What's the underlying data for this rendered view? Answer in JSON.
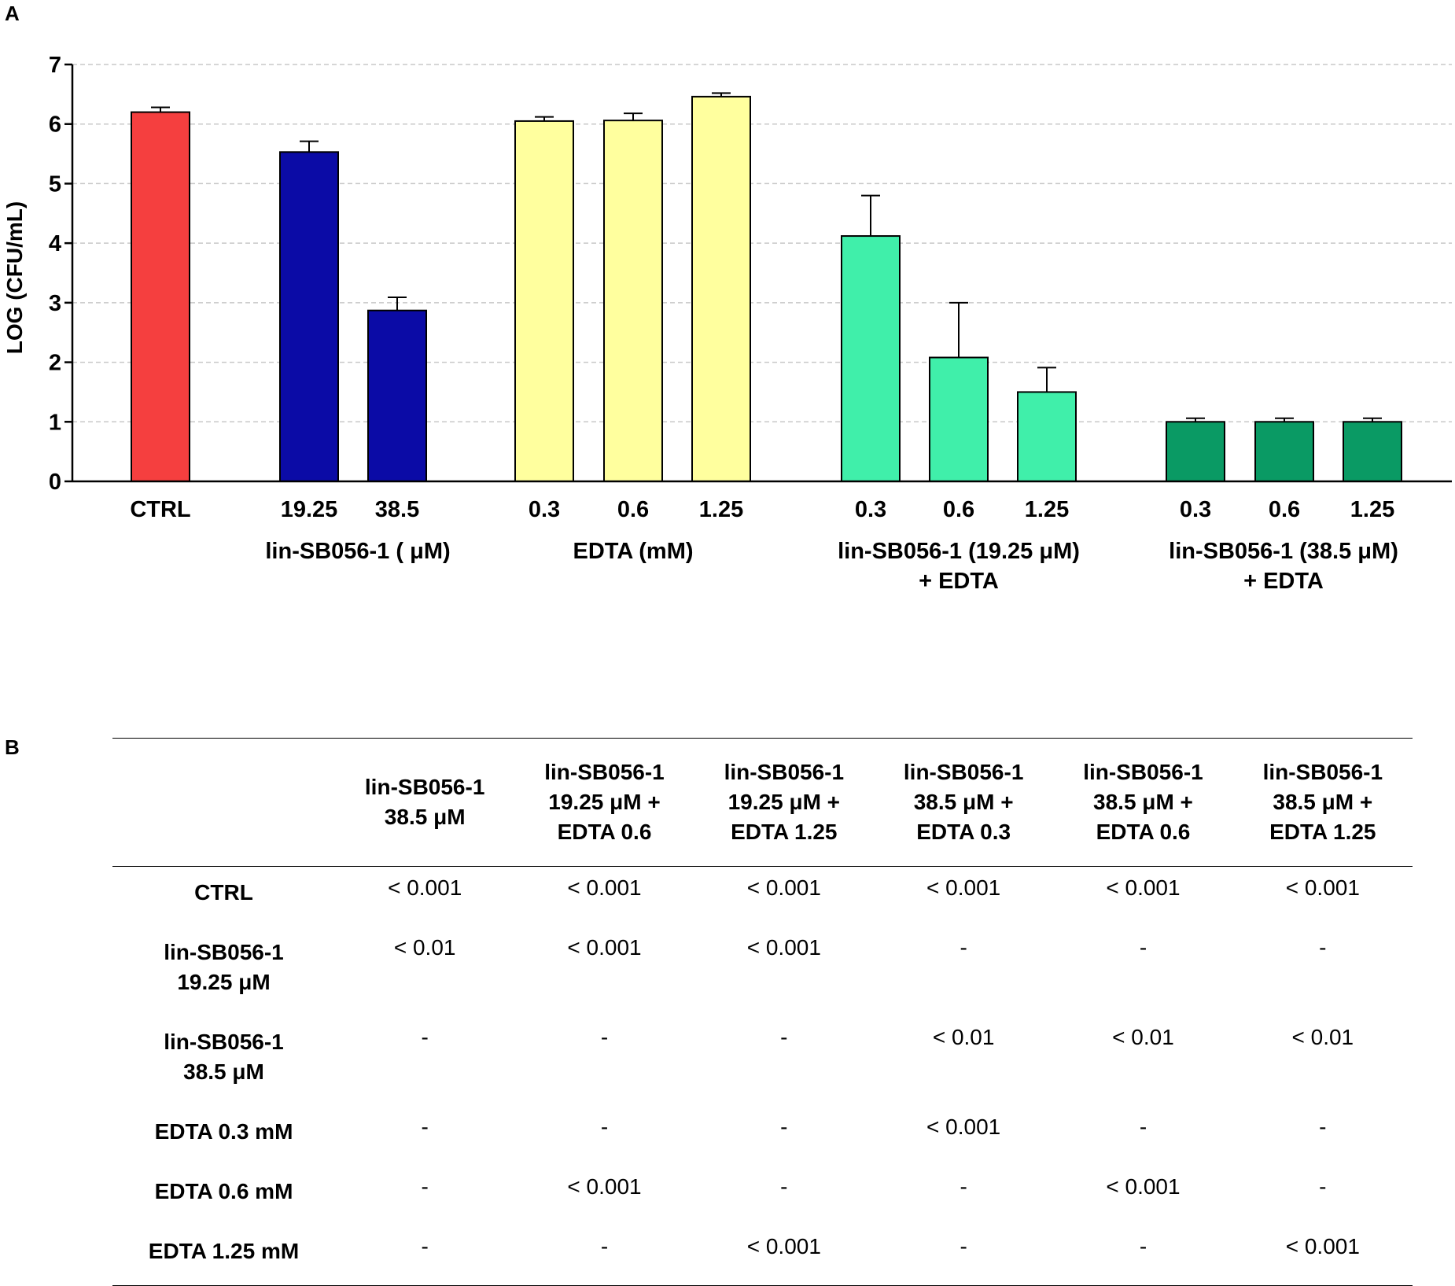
{
  "panel_labels": {
    "a": "A",
    "b": "B"
  },
  "chart_data": {
    "type": "bar",
    "ylabel": "LOG (CFU/mL)",
    "ylim": [
      0,
      7
    ],
    "yticks": [
      0,
      1,
      2,
      3,
      4,
      5,
      6,
      7
    ],
    "grid": "dashed-horizontal",
    "bars": [
      {
        "label": "CTRL",
        "value": 6.2,
        "error": 0.08,
        "color": "#f53f3f"
      },
      {
        "label": "19.25",
        "value": 5.53,
        "error": 0.18,
        "color": "#0b0ba6"
      },
      {
        "label": "38.5",
        "value": 2.87,
        "error": 0.22,
        "color": "#0b0ba6"
      },
      {
        "label": "0.3",
        "value": 6.05,
        "error": 0.07,
        "color": "#ffff9e"
      },
      {
        "label": "0.6",
        "value": 6.06,
        "error": 0.12,
        "color": "#ffff9e"
      },
      {
        "label": "1.25",
        "value": 6.46,
        "error": 0.06,
        "color": "#ffff9e"
      },
      {
        "label": "0.3",
        "value": 4.12,
        "error": 0.68,
        "color": "#40efaa"
      },
      {
        "label": "0.6",
        "value": 2.08,
        "error": 0.92,
        "color": "#40efaa"
      },
      {
        "label": "1.25",
        "value": 1.5,
        "error": 0.41,
        "color": "#40efaa"
      },
      {
        "label": "0.3",
        "value": 1.0,
        "error": 0.06,
        "color": "#0a9a64"
      },
      {
        "label": "0.6",
        "value": 1.0,
        "error": 0.06,
        "color": "#0a9a64"
      },
      {
        "label": "1.25",
        "value": 1.0,
        "error": 0.06,
        "color": "#0a9a64"
      }
    ],
    "groups": [
      {
        "lines": [
          "lin-SB056-1 ( μM)"
        ]
      },
      {
        "lines": [
          "EDTA (mM)"
        ]
      },
      {
        "lines": [
          "lin-SB056-1 (19.25   μM)",
          "+ EDTA"
        ]
      },
      {
        "lines": [
          "lin-SB056-1 (38.5   μM)",
          "+ EDTA"
        ]
      }
    ]
  },
  "table": {
    "corner": "",
    "headers": [
      [
        "lin-SB056-1",
        "38.5 μM"
      ],
      [
        "lin-SB056-1",
        "19.25 μM +",
        "EDTA 0.6"
      ],
      [
        "lin-SB056-1",
        "19.25 μM +",
        "EDTA 1.25"
      ],
      [
        "lin-SB056-1",
        "38.5 μM +",
        "EDTA 0.3"
      ],
      [
        "lin-SB056-1",
        "38.5 μM +",
        "EDTA 0.6"
      ],
      [
        "lin-SB056-1",
        "38.5 μM +",
        "EDTA 1.25"
      ]
    ],
    "rows": [
      {
        "label": [
          "CTRL"
        ],
        "cells": [
          "< 0.001",
          "< 0.001",
          "< 0.001",
          "< 0.001",
          "< 0.001",
          "< 0.001"
        ]
      },
      {
        "label": [
          "lin-SB056-1",
          "19.25 μM"
        ],
        "cells": [
          "< 0.01",
          "< 0.001",
          "< 0.001",
          "-",
          "-",
          "-"
        ]
      },
      {
        "label": [
          "lin-SB056-1",
          "38.5 μM"
        ],
        "cells": [
          "-",
          "-",
          "-",
          "< 0.01",
          "< 0.01",
          "< 0.01"
        ]
      },
      {
        "label": [
          "EDTA 0.3 mM"
        ],
        "cells": [
          "-",
          "-",
          "-",
          "< 0.001",
          "-",
          "-"
        ]
      },
      {
        "label": [
          "EDTA 0.6 mM"
        ],
        "cells": [
          "-",
          "< 0.001",
          "-",
          "-",
          "< 0.001",
          "-"
        ]
      },
      {
        "label": [
          "EDTA 1.25 mM"
        ],
        "cells": [
          "-",
          "-",
          "< 0.001",
          "-",
          "-",
          "< 0.001"
        ]
      }
    ]
  }
}
